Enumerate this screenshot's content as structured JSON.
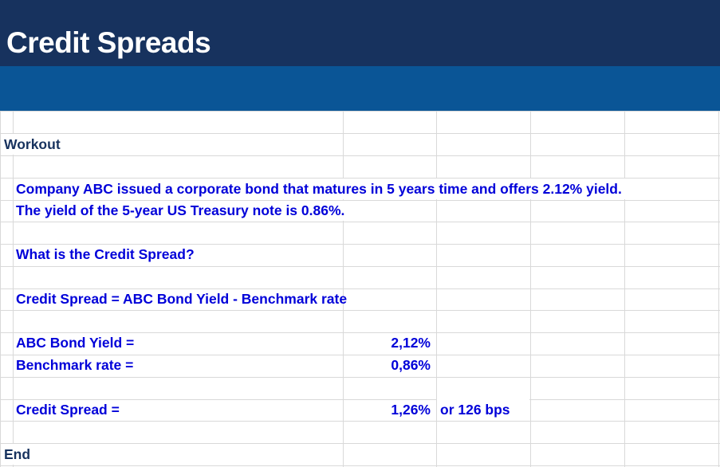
{
  "sheet": {
    "title": "Credit Spreads",
    "sections": {
      "workout": "Workout",
      "end": "End"
    },
    "problem": {
      "line1": "Company ABC issued a corporate bond that matures in 5 years time and offers 2.12% yield.",
      "line2": "The yield of the 5-year US Treasury note is 0.86%."
    },
    "question": "What is the Credit Spread?",
    "formula": "Credit Spread = ABC Bond Yield - Benchmark rate",
    "rows": {
      "bond_yield": {
        "label": "ABC Bond Yield =",
        "value": "2,12%"
      },
      "benchmark": {
        "label": "Benchmark rate =",
        "value": "0,86%"
      },
      "spread": {
        "label": "Credit Spread =",
        "value": "1,26%",
        "note": "or 126 bps"
      }
    }
  },
  "colors": {
    "title_band": "#17325e",
    "sub_band": "#0a5596",
    "header_text": "#17325e",
    "body_text": "#0000d9",
    "gridline": "#d9d9d9"
  }
}
